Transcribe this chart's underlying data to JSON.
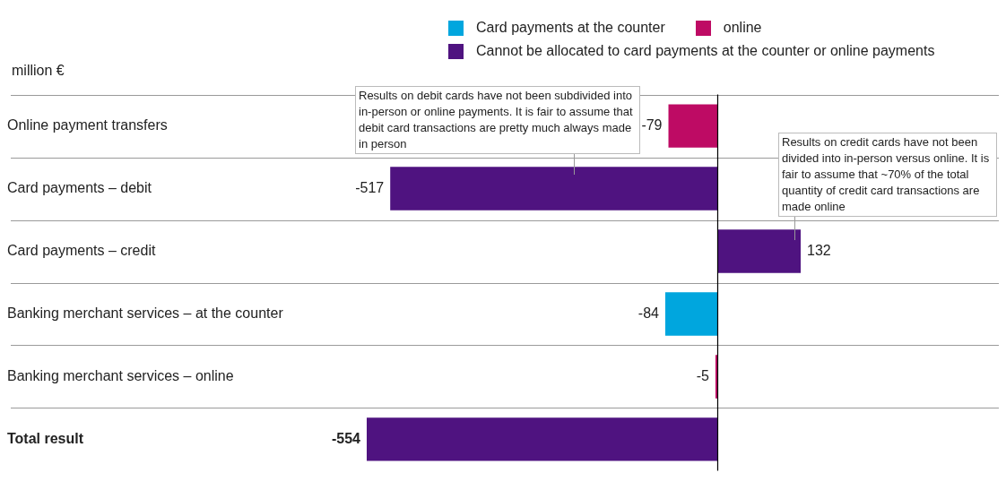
{
  "chart_data": {
    "type": "bar",
    "orientation": "horizontal",
    "stacked": true,
    "ylabel": "million €",
    "categories": [
      "Online payment transfers",
      "Card payments – debit",
      "Card payments – credit",
      "Banking merchant services – at the counter",
      "Banking merchant services – online",
      "Total result"
    ],
    "series": [
      {
        "name": "Card payments at the counter",
        "color": "#00a6de",
        "values": [
          null,
          null,
          null,
          -84,
          null,
          null
        ]
      },
      {
        "name": "online",
        "color": "#be0b64",
        "values": [
          -79,
          null,
          null,
          null,
          -5,
          null
        ]
      },
      {
        "name": "Cannot be allocated to card payments at the counter or online payments",
        "color": "#4f1380",
        "values": [
          null,
          -517,
          132,
          null,
          null,
          -554
        ]
      }
    ],
    "data_labels": true,
    "grid": "y",
    "legend": "top right",
    "annotations": [
      "Results on debit cards have not been subdivided into in-person or online payments. It is fair to assume that debit card transactions are pretty much always made in person",
      "Results on credit cards have not been divided into in-person versus online. It is fair to assume that ~70% of the total quantity of credit card transactions are made online"
    ]
  }
}
